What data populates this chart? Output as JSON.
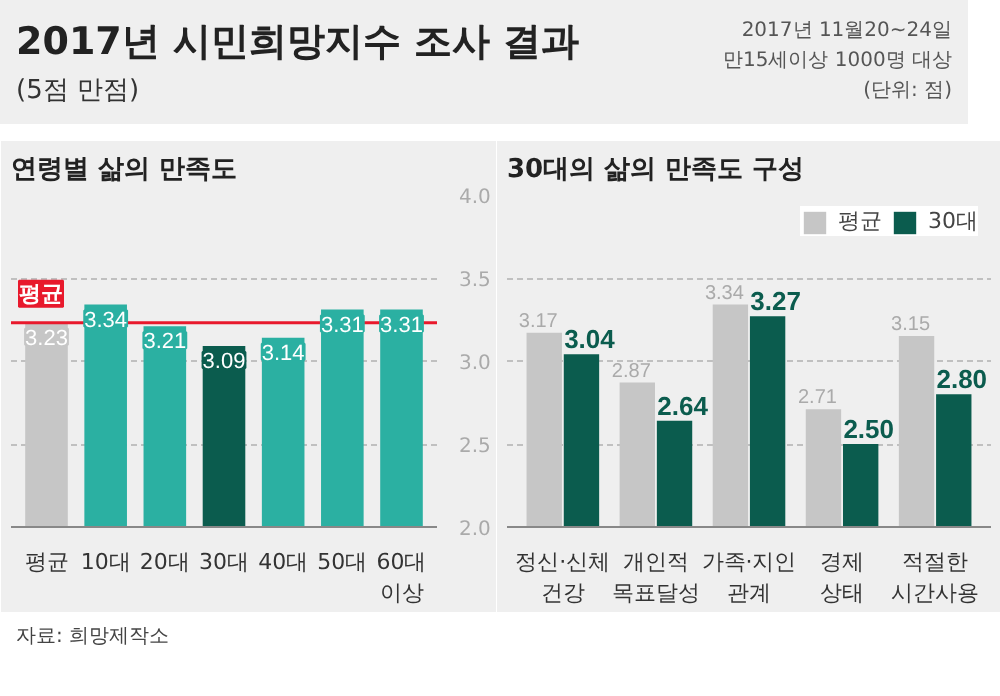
{
  "chart_data": [
    {
      "type": "bar",
      "title": "연령별 삶의 만족도",
      "categories": [
        "평균",
        "10대",
        "20대",
        "30대",
        "40대",
        "50대",
        "60대\n이상"
      ],
      "values": [
        3.23,
        3.34,
        3.21,
        3.09,
        3.14,
        3.31,
        3.31
      ],
      "colors": [
        "#c6c6c6",
        "#2bb0a2",
        "#2bb0a2",
        "#0b5c4e",
        "#2bb0a2",
        "#2bb0a2",
        "#2bb0a2"
      ],
      "ylim": [
        2,
        4
      ],
      "yticks": [
        {
          "value": 2,
          "label": "2.0"
        },
        {
          "value": 2.5,
          "label": "2.5"
        },
        {
          "value": 3,
          "label": "3.0"
        },
        {
          "value": 3.5,
          "label": "3.5"
        },
        {
          "value": 4,
          "label": "4.0"
        }
      ],
      "grid": "y",
      "data_labels": true,
      "ref_lines": [
        {
          "axis": "y",
          "value": 3.23,
          "label": "평균",
          "color": "#e8192c"
        }
      ],
      "annotations": [
        "2017년 시민희망지수 조사 결과",
        "(5점 만점)",
        "2017년 11월20~24일",
        "만15세이상 1000명 대상",
        "(단위: 점)",
        "자료: 희망제작소"
      ]
    },
    {
      "type": "bar",
      "title": "30대의 삶의 만족도 구성",
      "categories": [
        "정신·신체\n건강",
        "개인적\n목표달성",
        "가족·지인\n관계",
        "경제\n상태",
        "적절한\n시간사용"
      ],
      "series": [
        {
          "name": "평균",
          "color": "#c6c6c6",
          "values": [
            3.17,
            2.87,
            3.34,
            2.71,
            3.15
          ]
        },
        {
          "name": "30대",
          "color": "#0b5c4e",
          "values": [
            3.04,
            2.64,
            3.27,
            2.5,
            2.8
          ],
          "value_labels": [
            "3.04",
            "2.64",
            "3.27",
            "2.50",
            "2.80"
          ]
        }
      ],
      "ylim": [
        2,
        4
      ],
      "yticks": [
        2,
        2.5,
        3,
        3.5,
        4
      ],
      "tick_labels": "x",
      "grid": "y",
      "data_labels": true,
      "legend": "top right"
    }
  ]
}
